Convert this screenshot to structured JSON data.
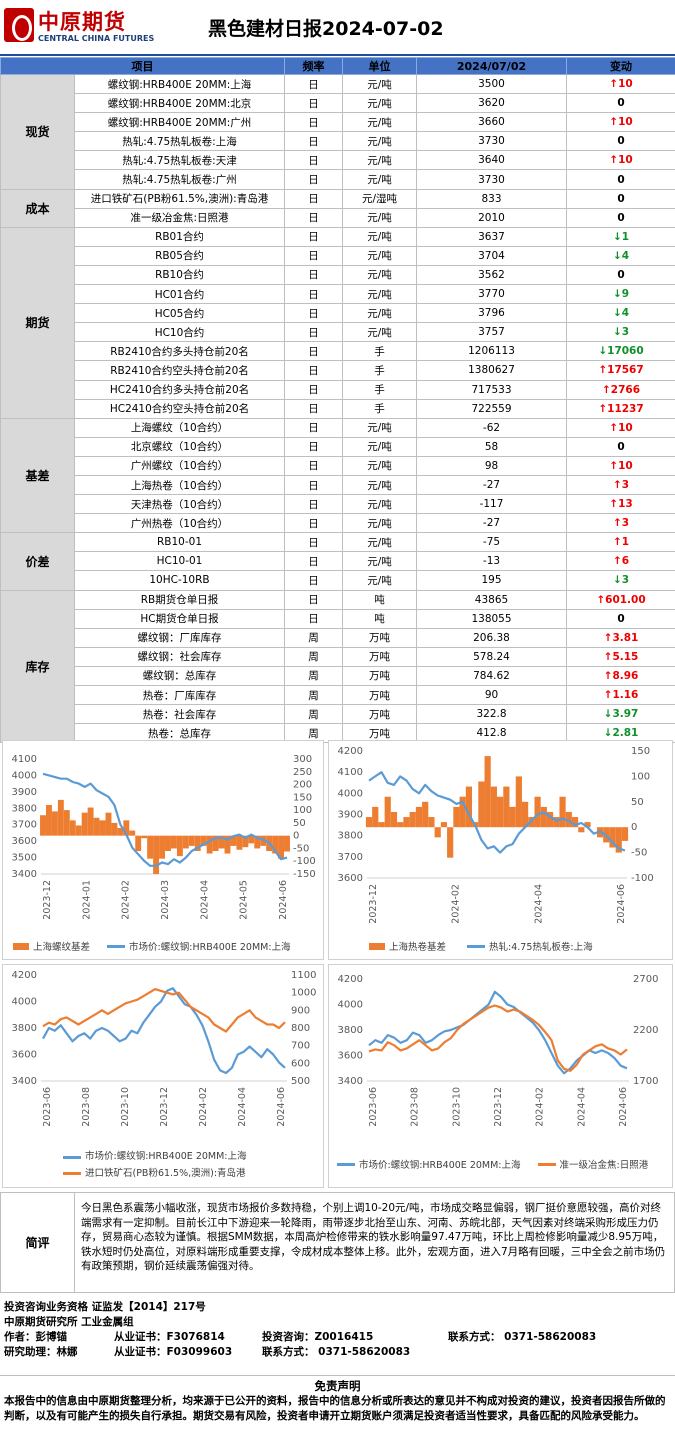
{
  "header": {
    "logo_cn": "中原期货",
    "logo_en": "CENTRAL CHINA FUTURES",
    "title": "黑色建材日报2024-07-02",
    "brand_color": "#c00000"
  },
  "table": {
    "headers": [
      "项目",
      "频率",
      "单位",
      "2024/07/02",
      "变动"
    ],
    "header_color": "#4472c4",
    "groups": [
      {
        "category": "现货",
        "rows": [
          {
            "item": "螺纹钢:HRB400E 20MM:上海",
            "freq": "日",
            "unit": "元/吨",
            "value": "3500",
            "dir": "up",
            "change": "10"
          },
          {
            "item": "螺纹钢:HRB400E 20MM:北京",
            "freq": "日",
            "unit": "元/吨",
            "value": "3620",
            "dir": "none",
            "change": "0"
          },
          {
            "item": "螺纹钢:HRB400E 20MM:广州",
            "freq": "日",
            "unit": "元/吨",
            "value": "3660",
            "dir": "up",
            "change": "10"
          },
          {
            "item": "热轧:4.75热轧板卷:上海",
            "freq": "日",
            "unit": "元/吨",
            "value": "3730",
            "dir": "none",
            "change": "0"
          },
          {
            "item": "热轧:4.75热轧板卷:天津",
            "freq": "日",
            "unit": "元/吨",
            "value": "3640",
            "dir": "up",
            "change": "10"
          },
          {
            "item": "热轧:4.75热轧板卷:广州",
            "freq": "日",
            "unit": "元/吨",
            "value": "3730",
            "dir": "none",
            "change": "0"
          }
        ]
      },
      {
        "category": "成本",
        "rows": [
          {
            "item": "进口铁矿石(PB粉61.5%,澳洲):青岛港",
            "freq": "日",
            "unit": "元/湿吨",
            "value": "833",
            "dir": "none",
            "change": "0"
          },
          {
            "item": "准一级冶金焦:日照港",
            "freq": "日",
            "unit": "元/吨",
            "value": "2010",
            "dir": "none",
            "change": "0"
          }
        ]
      },
      {
        "category": "期货",
        "rows": [
          {
            "item": "RB01合约",
            "freq": "日",
            "unit": "元/吨",
            "value": "3637",
            "dir": "down",
            "change": "1"
          },
          {
            "item": "RB05合约",
            "freq": "日",
            "unit": "元/吨",
            "value": "3704",
            "dir": "down",
            "change": "4"
          },
          {
            "item": "RB10合约",
            "freq": "日",
            "unit": "元/吨",
            "value": "3562",
            "dir": "none",
            "change": "0"
          },
          {
            "item": "HC01合约",
            "freq": "日",
            "unit": "元/吨",
            "value": "3770",
            "dir": "down",
            "change": "9"
          },
          {
            "item": "HC05合约",
            "freq": "日",
            "unit": "元/吨",
            "value": "3796",
            "dir": "down",
            "change": "4"
          },
          {
            "item": "HC10合约",
            "freq": "日",
            "unit": "元/吨",
            "value": "3757",
            "dir": "down",
            "change": "3"
          },
          {
            "item": "RB2410合约多头持仓前20名",
            "freq": "日",
            "unit": "手",
            "value": "1206113",
            "dir": "down",
            "change": "17060"
          },
          {
            "item": "RB2410合约空头持仓前20名",
            "freq": "日",
            "unit": "手",
            "value": "1380627",
            "dir": "up",
            "change": "17567"
          },
          {
            "item": "HC2410合约多头持仓前20名",
            "freq": "日",
            "unit": "手",
            "value": "717533",
            "dir": "up",
            "change": "2766"
          },
          {
            "item": "HC2410合约空头持仓前20名",
            "freq": "日",
            "unit": "手",
            "value": "722559",
            "dir": "up",
            "change": "11237"
          }
        ]
      },
      {
        "category": "基差",
        "rows": [
          {
            "item": "上海螺纹（10合约）",
            "freq": "日",
            "unit": "元/吨",
            "value": "-62",
            "dir": "up",
            "change": "10"
          },
          {
            "item": "北京螺纹（10合约）",
            "freq": "日",
            "unit": "元/吨",
            "value": "58",
            "dir": "none",
            "change": "0"
          },
          {
            "item": "广州螺纹（10合约）",
            "freq": "日",
            "unit": "元/吨",
            "value": "98",
            "dir": "up",
            "change": "10"
          },
          {
            "item": "上海热卷（10合约）",
            "freq": "日",
            "unit": "元/吨",
            "value": "-27",
            "dir": "up",
            "change": "3"
          },
          {
            "item": "天津热卷（10合约）",
            "freq": "日",
            "unit": "元/吨",
            "value": "-117",
            "dir": "up",
            "change": "13"
          },
          {
            "item": "广州热卷（10合约）",
            "freq": "日",
            "unit": "元/吨",
            "value": "-27",
            "dir": "up",
            "change": "3"
          }
        ]
      },
      {
        "category": "价差",
        "rows": [
          {
            "item": "RB10-01",
            "freq": "日",
            "unit": "元/吨",
            "value": "-75",
            "dir": "up",
            "change": "1"
          },
          {
            "item": "HC10-01",
            "freq": "日",
            "unit": "元/吨",
            "value": "-13",
            "dir": "up",
            "change": "6"
          },
          {
            "item": "10HC-10RB",
            "freq": "日",
            "unit": "元/吨",
            "value": "195",
            "dir": "down",
            "change": "3"
          }
        ]
      },
      {
        "category": "库存",
        "rows": [
          {
            "item": "RB期货仓单日报",
            "freq": "日",
            "unit": "吨",
            "value": "43865",
            "dir": "up",
            "change": "601.00"
          },
          {
            "item": "HC期货仓单日报",
            "freq": "日",
            "unit": "吨",
            "value": "138055",
            "dir": "none",
            "change": "0"
          },
          {
            "item": "螺纹钢：厂库库存",
            "freq": "周",
            "unit": "万吨",
            "value": "206.38",
            "dir": "up",
            "change": "3.81"
          },
          {
            "item": "螺纹钢：社会库存",
            "freq": "周",
            "unit": "万吨",
            "value": "578.24",
            "dir": "up",
            "change": "5.15"
          },
          {
            "item": "螺纹钢：总库存",
            "freq": "周",
            "unit": "万吨",
            "value": "784.62",
            "dir": "up",
            "change": "8.96"
          },
          {
            "item": "热卷：厂库库存",
            "freq": "周",
            "unit": "万吨",
            "value": "90",
            "dir": "up",
            "change": "1.16"
          },
          {
            "item": "热卷：社会库存",
            "freq": "周",
            "unit": "万吨",
            "value": "322.8",
            "dir": "down",
            "change": "3.97"
          },
          {
            "item": "热卷：总库存",
            "freq": "周",
            "unit": "万吨",
            "value": "412.8",
            "dir": "down",
            "change": "2.81"
          }
        ]
      }
    ]
  },
  "chart_data": [
    {
      "type": "bar+line",
      "x_ticks": [
        "2023-12",
        "2024-01",
        "2024-02",
        "2024-03",
        "2024-04",
        "2024-05",
        "2024-06"
      ],
      "y_left_ticks": [
        "4100",
        "4000",
        "3900",
        "3800",
        "3700",
        "3600",
        "3500",
        "3400"
      ],
      "y_left_range": [
        3400,
        4100
      ],
      "y_right_ticks": [
        "300",
        "250",
        "200",
        "150",
        "100",
        "50",
        "0",
        "-50",
        "-100",
        "-150"
      ],
      "y_right_range": [
        -150,
        300
      ],
      "series": [
        {
          "name": "上海螺纹基差",
          "kind": "bar",
          "axis": "right",
          "color": "#ed7d31",
          "values": [
            80,
            120,
            95,
            140,
            100,
            60,
            40,
            90,
            110,
            70,
            60,
            90,
            50,
            30,
            60,
            20,
            -60,
            -10,
            -90,
            -150,
            -90,
            -60,
            -50,
            -80,
            -50,
            -40,
            -60,
            -40,
            -70,
            -60,
            -50,
            -70,
            -40,
            -55,
            -45,
            -30,
            -50,
            -40,
            -60,
            -70,
            -90,
            -62
          ]
        },
        {
          "name": "市场价:螺纹钢:HRB400E 20MM:上海",
          "kind": "line",
          "axis": "left",
          "color": "#5b9bd5",
          "values": [
            4010,
            4000,
            3990,
            3980,
            3980,
            3960,
            3950,
            3930,
            3950,
            3910,
            3890,
            3870,
            3820,
            3700,
            3640,
            3560,
            3520,
            3480,
            3450,
            3450,
            3470,
            3460,
            3490,
            3470,
            3500,
            3540,
            3560,
            3580,
            3600,
            3620,
            3620,
            3610,
            3630,
            3640,
            3620,
            3640,
            3620,
            3610,
            3590,
            3540,
            3490,
            3500
          ]
        }
      ]
    },
    {
      "type": "bar+line",
      "x_ticks": [
        "2023-12",
        "2024-02",
        "2024-04",
        "2024-06"
      ],
      "y_left_ticks": [
        "4200",
        "4100",
        "4000",
        "3900",
        "3800",
        "3700",
        "3600"
      ],
      "y_left_range": [
        3600,
        4200
      ],
      "y_right_ticks": [
        "150",
        "100",
        "50",
        "0",
        "-50",
        "-100"
      ],
      "y_right_range": [
        -100,
        150
      ],
      "series": [
        {
          "name": "上海热卷基差",
          "kind": "bar",
          "axis": "right",
          "color": "#ed7d31",
          "values": [
            20,
            40,
            10,
            60,
            30,
            10,
            20,
            30,
            40,
            50,
            20,
            -20,
            10,
            -60,
            40,
            60,
            80,
            10,
            90,
            140,
            80,
            60,
            80,
            40,
            100,
            50,
            20,
            60,
            40,
            30,
            20,
            60,
            30,
            20,
            -10,
            10,
            0,
            -20,
            -30,
            -40,
            -50,
            -27
          ]
        },
        {
          "name": "热轧:4.75热轧板卷:上海",
          "kind": "line",
          "axis": "left",
          "color": "#5b9bd5",
          "values": [
            4060,
            4080,
            4100,
            4050,
            4040,
            4080,
            4060,
            4020,
            4000,
            4040,
            4010,
            3990,
            3980,
            3970,
            3950,
            3960,
            3900,
            3850,
            3780,
            3740,
            3750,
            3720,
            3750,
            3760,
            3810,
            3840,
            3870,
            3900,
            3910,
            3890,
            3870,
            3880,
            3870,
            3850,
            3860,
            3840,
            3810,
            3820,
            3800,
            3770,
            3740,
            3730
          ]
        }
      ]
    },
    {
      "type": "line",
      "x_ticks": [
        "2023-06",
        "2023-08",
        "2023-10",
        "2023-12",
        "2024-02",
        "2024-04",
        "2024-06"
      ],
      "y_left_ticks": [
        "4200",
        "4000",
        "3800",
        "3600",
        "3400"
      ],
      "y_left_range": [
        3400,
        4200
      ],
      "y_right_ticks": [
        "1100",
        "1000",
        "900",
        "800",
        "700",
        "600",
        "500"
      ],
      "y_right_range": [
        500,
        1100
      ],
      "series": [
        {
          "name": "市场价:螺纹钢:HRB400E 20MM:上海",
          "axis": "left",
          "color": "#5b9bd5",
          "values": [
            3720,
            3800,
            3780,
            3820,
            3760,
            3700,
            3740,
            3760,
            3720,
            3780,
            3800,
            3780,
            3740,
            3700,
            3720,
            3780,
            3760,
            3840,
            3900,
            3960,
            4000,
            4080,
            4100,
            4040,
            3980,
            3960,
            3900,
            3820,
            3700,
            3560,
            3480,
            3460,
            3500,
            3600,
            3620,
            3660,
            3620,
            3580,
            3640,
            3600,
            3540,
            3500
          ]
        },
        {
          "name": "进口铁矿石(PB粉61.5%,澳洲):青岛港",
          "axis": "right",
          "color": "#ed7d31",
          "values": [
            810,
            830,
            820,
            850,
            860,
            840,
            820,
            840,
            860,
            880,
            900,
            880,
            900,
            920,
            940,
            950,
            960,
            980,
            1000,
            1020,
            1010,
            1000,
            990,
            1000,
            960,
            920,
            900,
            880,
            860,
            820,
            800,
            780,
            820,
            860,
            880,
            900,
            860,
            840,
            820,
            820,
            800,
            833
          ]
        }
      ]
    },
    {
      "type": "line",
      "x_ticks": [
        "2023-06",
        "2023-08",
        "2023-10",
        "2023-12",
        "2024-02",
        "2024-04",
        "2024-06"
      ],
      "y_left_ticks": [
        "4200",
        "4000",
        "3800",
        "3600",
        "3400"
      ],
      "y_left_range": [
        3400,
        4200
      ],
      "y_right_ticks": [
        "2700",
        "2200",
        "1700"
      ],
      "y_right_range": [
        1700,
        2700
      ],
      "series": [
        {
          "name": "市场价:螺纹钢:HRB400E 20MM:上海",
          "axis": "left",
          "color": "#5b9bd5",
          "values": [
            3680,
            3720,
            3700,
            3760,
            3740,
            3700,
            3720,
            3780,
            3760,
            3700,
            3720,
            3760,
            3790,
            3800,
            3820,
            3840,
            3880,
            3920,
            3960,
            4000,
            4100,
            4060,
            4000,
            3980,
            3940,
            3900,
            3860,
            3800,
            3720,
            3620,
            3520,
            3460,
            3500,
            3560,
            3600,
            3640,
            3620,
            3640,
            3620,
            3580,
            3520,
            3500
          ]
        },
        {
          "name": "准一级冶金焦:日照港",
          "axis": "right",
          "color": "#ed7d31",
          "values": [
            1990,
            2010,
            2000,
            2080,
            2050,
            2000,
            2020,
            2060,
            2100,
            2050,
            2000,
            2020,
            2080,
            2120,
            2200,
            2260,
            2300,
            2340,
            2380,
            2420,
            2440,
            2420,
            2380,
            2400,
            2380,
            2340,
            2300,
            2250,
            2180,
            2100,
            1900,
            1820,
            1800,
            1860,
            1960,
            2000,
            2040,
            2060,
            2020,
            2000,
            1960,
            2010
          ]
        }
      ]
    }
  ],
  "comment": {
    "label": "简评",
    "text": "今日黑色系震荡小幅收涨，现货市场报价多数持稳，个别上调10-20元/吨，市场成交略显偏弱，钢厂挺价意愿较强，高价对终端需求有一定抑制。目前长江中下游迎来一轮降雨，雨带逐步北抬至山东、河南、苏皖北部，天气因素对终端采购形成压力仍存，贸易商心态较为谨慎。根据SMM数据，本周高炉检修带来的铁水影响量97.47万吨，环比上周检修影响量减少8.95万吨，铁水短时仍处高位，对原料端形成重要支撑，令成材成本整体上移。此外，宏观方面，进入7月略有回暖，三中全会之前市场仍有政策预期，钢价延续震荡偏强对待。"
  },
  "info": {
    "line1": "投资咨询业务资格  证监发【2014】217号",
    "line2": "中原期货研究所  工业金属组",
    "author_label": "作者：彭博锚",
    "author_cert": "从业证书：F3076814",
    "author_consult": "投资咨询：Z0016415",
    "author_contact": "联系方式： 0371-58620083",
    "assist_label": "研究助理：林娜",
    "assist_cert": "从业证书：F03099603",
    "assist_contact": "联系方式： 0371-58620083"
  },
  "disclaimer": {
    "title": "免责声明",
    "text": "本报告中的信息由中原期货整理分析，均来源于已公开的资料，报告中的信息分析或所表达的意见并不构成对投资的建议，投资者因报告所做的判断，以及有可能产生的损失自行承担。期货交易有风险，投资者申请开立期货账户须满足投资者适当性要求，具备匹配的风险承受能力。"
  }
}
